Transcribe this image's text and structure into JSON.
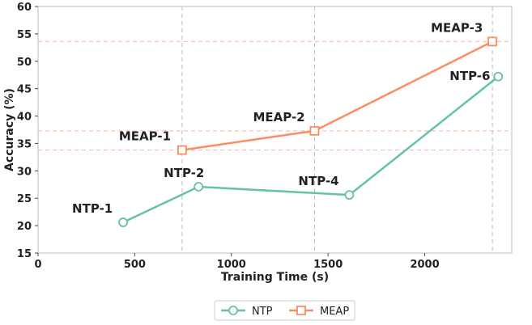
{
  "chart_data": {
    "type": "line",
    "xlabel": "Training Time (s)",
    "ylabel": "Accuracy (%)",
    "xlim": [
      0,
      2450
    ],
    "ylim": [
      15,
      60
    ],
    "xticks": [
      0,
      500,
      1000,
      1500,
      2000
    ],
    "yticks": [
      15,
      20,
      25,
      30,
      35,
      40,
      45,
      50,
      55,
      60
    ],
    "grid": false,
    "legend_position": "bottom-center",
    "series": [
      {
        "name": "NTP",
        "color": "#66c2a5",
        "marker": "circle",
        "points": [
          {
            "x": 440,
            "y": 20.6,
            "label": "NTP-1"
          },
          {
            "x": 830,
            "y": 27.1,
            "label": "NTP-2"
          },
          {
            "x": 1610,
            "y": 25.6,
            "label": "NTP-4"
          },
          {
            "x": 2380,
            "y": 47.2,
            "label": "NTP-6"
          }
        ]
      },
      {
        "name": "MEAP",
        "color": "#fc8d62",
        "marker": "square",
        "points": [
          {
            "x": 745,
            "y": 33.8,
            "label": "MEAP-1"
          },
          {
            "x": 1430,
            "y": 37.3,
            "label": "MEAP-2"
          },
          {
            "x": 2350,
            "y": 53.6,
            "label": "MEAP-3"
          }
        ]
      }
    ],
    "reference_lines": {
      "horizontal": [
        33.8,
        37.3,
        53.6
      ],
      "vertical": [
        745,
        1430,
        2350
      ],
      "color": "#f4a582"
    }
  }
}
